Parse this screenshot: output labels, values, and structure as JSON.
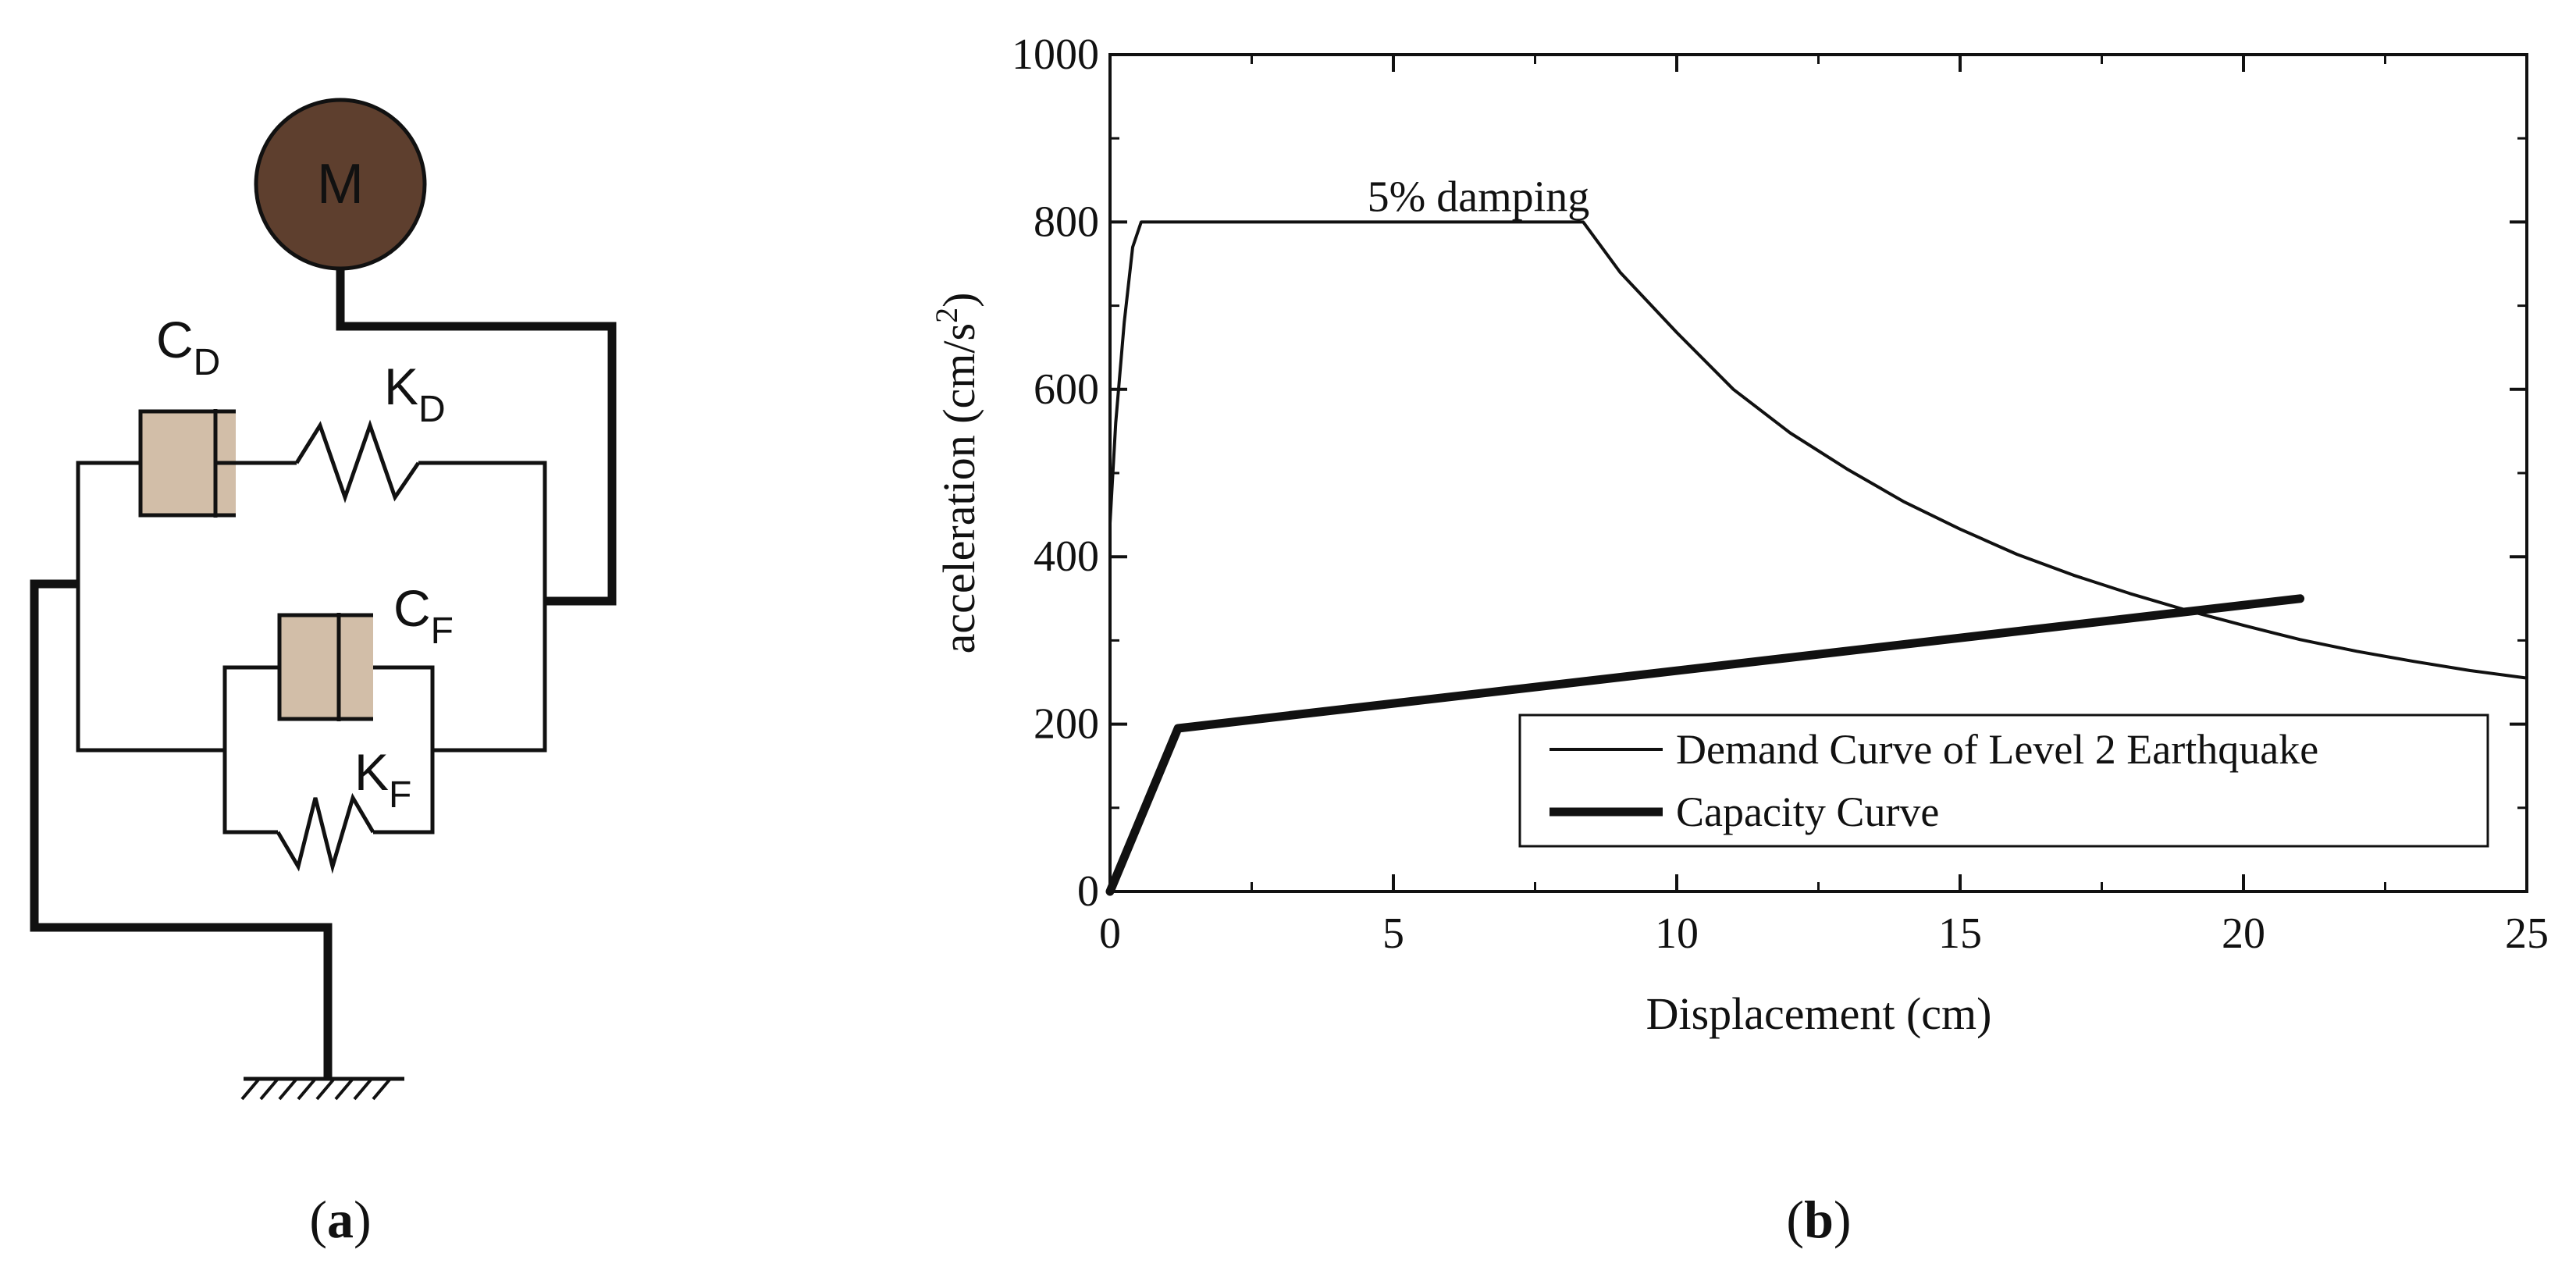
{
  "panel_a": {
    "caption_letter": "a",
    "mass_label": "M",
    "cd_label": {
      "main": "C",
      "sub": "D"
    },
    "kd_label": {
      "main": "K",
      "sub": "D"
    },
    "cf_label": {
      "main": "C",
      "sub": "F"
    },
    "kf_label": {
      "main": "K",
      "sub": "F"
    },
    "colors": {
      "mass_fill": "#5e3f2e",
      "damper_fill": "#d2bea8",
      "line": "#111111"
    }
  },
  "panel_b": {
    "caption_letter": "b"
  },
  "chart_data": {
    "type": "line",
    "title": "",
    "xlabel": "Displacement (cm)",
    "ylabel": {
      "main": "acceleration (cm/s",
      "sup": "2",
      "close": ")"
    },
    "xlim": [
      0,
      25
    ],
    "ylim": [
      0,
      1000
    ],
    "x_ticks": [
      0,
      5,
      10,
      15,
      20,
      25
    ],
    "x_tick_labels": [
      "0",
      "5",
      "10",
      "15",
      "20",
      "25"
    ],
    "y_ticks": [
      0,
      200,
      400,
      600,
      800,
      1000
    ],
    "y_tick_labels": [
      "0",
      "200",
      "400",
      "600",
      "800",
      "1000"
    ],
    "annotation": {
      "text": "5% damping",
      "x": 6.5,
      "y": 800
    },
    "legend_position": "bottom-right",
    "series": [
      {
        "name": "Demand Curve of Level 2 Earthquake",
        "style": "thin",
        "x": [
          0.0,
          0.1,
          0.25,
          0.4,
          0.55,
          4.0,
          8.35,
          9.0,
          10.0,
          11.0,
          12.0,
          13.0,
          14.0,
          15.0,
          16.0,
          17.0,
          18.0,
          19.0,
          20.0,
          21.0,
          22.0,
          23.0,
          24.0,
          25.0
        ],
        "y": [
          440,
          560,
          680,
          770,
          800,
          800,
          800,
          740,
          668,
          600,
          548,
          505,
          466,
          433,
          403,
          378,
          356,
          336,
          318,
          301,
          287,
          275,
          264,
          255
        ]
      },
      {
        "name": "Capacity Curve",
        "style": "thick",
        "x": [
          0.0,
          1.2,
          21.0
        ],
        "y": [
          0,
          195,
          350
        ]
      }
    ]
  }
}
